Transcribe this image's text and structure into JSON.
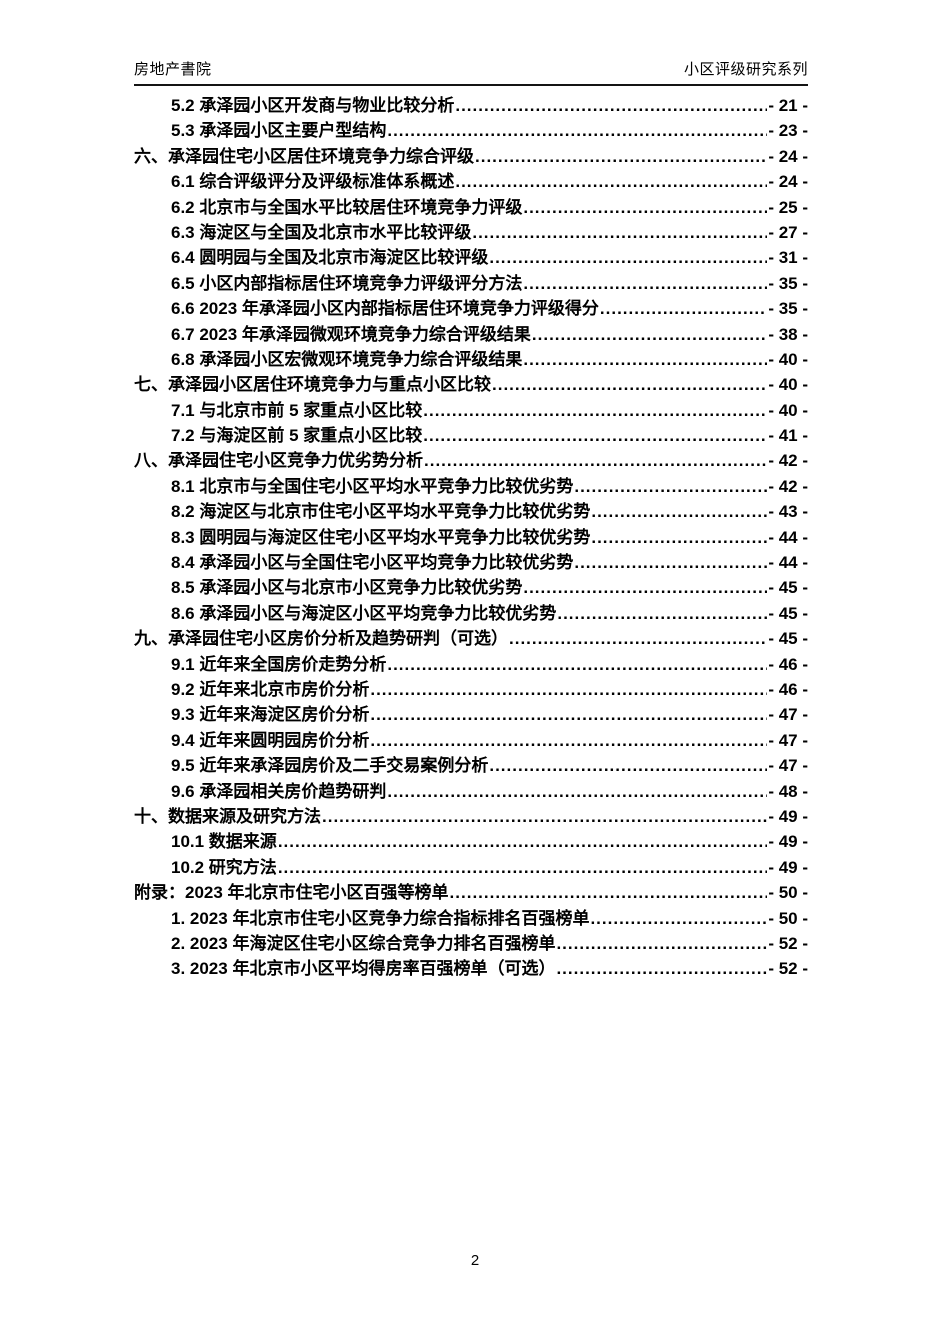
{
  "header": {
    "left": "房地产書院",
    "right": "小区评级研究系列"
  },
  "footer": {
    "page_number": "2"
  },
  "toc": {
    "entries": [
      {
        "level": 2,
        "label": "5.2 承泽园小区开发商与物业比较分析",
        "page": "- 21 -"
      },
      {
        "level": 2,
        "label": "5.3 承泽园小区主要户型结构",
        "page": "- 23 -"
      },
      {
        "level": 1,
        "label": "六、承泽园住宅小区居住环境竞争力综合评级",
        "page": "- 24 -"
      },
      {
        "level": 2,
        "label": "6.1 综合评级评分及评级标准体系概述",
        "page": "- 24 -"
      },
      {
        "level": 2,
        "label": "6.2 北京市与全国水平比较居住环境竞争力评级",
        "page": "- 25 -"
      },
      {
        "level": 2,
        "label": "6.3 海淀区与全国及北京市水平比较评级",
        "page": "- 27 -"
      },
      {
        "level": 2,
        "label": "6.4 圆明园与全国及北京市海淀区比较评级",
        "page": "- 31 -"
      },
      {
        "level": 2,
        "label": "6.5 小区内部指标居住环境竞争力评级评分方法",
        "page": "- 35 -"
      },
      {
        "level": 2,
        "label": "6.6 2023 年承泽园小区内部指标居住环境竞争力评级得分",
        "page": "- 35 -"
      },
      {
        "level": 2,
        "label": "6.7 2023 年承泽园微观环境竞争力综合评级结果",
        "page": "- 38 -"
      },
      {
        "level": 2,
        "label": "6.8 承泽园小区宏微观环境竞争力综合评级结果",
        "page": "- 40 -"
      },
      {
        "level": 1,
        "label": "七、承泽园小区居住环境竞争力与重点小区比较",
        "page": "- 40 -"
      },
      {
        "level": 2,
        "label": "7.1 与北京市前 5 家重点小区比较",
        "page": "- 40 -"
      },
      {
        "level": 2,
        "label": "7.2 与海淀区前 5 家重点小区比较",
        "page": "- 41 -"
      },
      {
        "level": 1,
        "label": "八、承泽园住宅小区竞争力优劣势分析",
        "page": "- 42 -"
      },
      {
        "level": 2,
        "label": "8.1 北京市与全国住宅小区平均水平竞争力比较优劣势",
        "page": "- 42 -"
      },
      {
        "level": 2,
        "label": "8.2 海淀区与北京市住宅小区平均水平竞争力比较优劣势",
        "page": "- 43 -"
      },
      {
        "level": 2,
        "label": "8.3 圆明园与海淀区住宅小区平均水平竞争力比较优劣势",
        "page": "- 44 -"
      },
      {
        "level": 2,
        "label": "8.4 承泽园小区与全国住宅小区平均竞争力比较优劣势",
        "page": "- 44 -"
      },
      {
        "level": 2,
        "label": "8.5 承泽园小区与北京市小区竞争力比较优劣势",
        "page": "- 45 -"
      },
      {
        "level": 2,
        "label": "8.6 承泽园小区与海淀区小区平均竞争力比较优劣势",
        "page": "- 45 -"
      },
      {
        "level": 1,
        "label": "九、承泽园住宅小区房价分析及趋势研判（可选）",
        "page": "- 45 -"
      },
      {
        "level": 2,
        "label": "9.1 近年来全国房价走势分析",
        "page": "- 46 -"
      },
      {
        "level": 2,
        "label": "9.2 近年来北京市房价分析",
        "page": "- 46 -"
      },
      {
        "level": 2,
        "label": "9.3 近年来海淀区房价分析",
        "page": "- 47 -"
      },
      {
        "level": 2,
        "label": "9.4 近年来圆明园房价分析",
        "page": "- 47 -"
      },
      {
        "level": 2,
        "label": "9.5 近年来承泽园房价及二手交易案例分析",
        "page": "- 47 -"
      },
      {
        "level": 2,
        "label": "9.6 承泽园相关房价趋势研判",
        "page": "- 48 -"
      },
      {
        "level": 1,
        "label": "十、数据来源及研究方法",
        "page": "- 49 -"
      },
      {
        "level": 2,
        "label": "10.1 数据来源",
        "page": "- 49 -"
      },
      {
        "level": 2,
        "label": "10.2 研究方法",
        "page": "- 49 -"
      },
      {
        "level": 1,
        "label": "附录：2023 年北京市住宅小区百强等榜单",
        "page": "- 50 -"
      },
      {
        "level": 2,
        "label": "1. 2023 年北京市住宅小区竞争力综合指标排名百强榜单",
        "page": "- 50 -"
      },
      {
        "level": 2,
        "label": "2. 2023 年海淀区住宅小区综合竞争力排名百强榜单",
        "page": "- 52 -"
      },
      {
        "level": 2,
        "label": "3. 2023 年北京市小区平均得房率百强榜单（可选）",
        "page": "- 52 -"
      }
    ]
  }
}
